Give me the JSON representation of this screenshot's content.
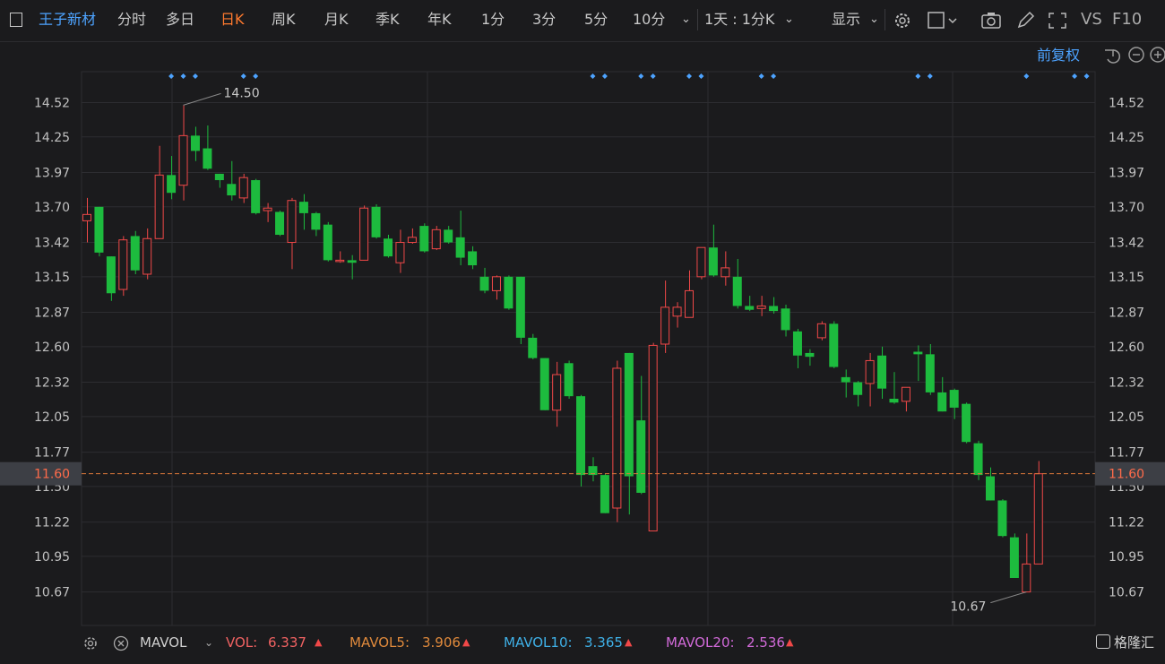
{
  "toolbar": {
    "stock_name": "王子新材",
    "periods": [
      "分时",
      "多日",
      "日K",
      "周K",
      "月K",
      "季K",
      "年K",
      "1分",
      "3分",
      "5分",
      "10分"
    ],
    "active_period": "日K",
    "range_label": "1天 : 1分K",
    "display_label": "显示",
    "vs_label": "VS",
    "f10_label": "F10"
  },
  "chart_controls": {
    "adjust_label": "前复权"
  },
  "colors": {
    "up": "#f04848",
    "down": "#1dbb3e",
    "grid": "#2d2d31",
    "current_line": "#e0793a",
    "axis_text": "#c0c0c0",
    "marker": "#4da3ff"
  },
  "chart_data": {
    "type": "candlestick",
    "y_ticks": [
      "14.52",
      "14.25",
      "13.97",
      "13.70",
      "13.42",
      "13.15",
      "12.87",
      "12.60",
      "12.32",
      "12.05",
      "11.77",
      "11.50",
      "11.22",
      "10.95",
      "10.67"
    ],
    "ylim": [
      10.41,
      14.77
    ],
    "current_price": "11.60",
    "high_annotation": "14.50",
    "low_annotation": "10.67",
    "candles": [
      {
        "o": 13.59,
        "c": 13.64,
        "h": 13.77,
        "l": 13.42
      },
      {
        "o": 13.7,
        "c": 13.34,
        "h": 13.7,
        "l": 13.31
      },
      {
        "o": 13.31,
        "c": 13.02,
        "h": 13.31,
        "l": 12.96
      },
      {
        "o": 13.05,
        "c": 13.44,
        "h": 13.47,
        "l": 13.0
      },
      {
        "o": 13.47,
        "c": 13.2,
        "h": 13.51,
        "l": 13.17
      },
      {
        "o": 13.17,
        "c": 13.45,
        "h": 13.53,
        "l": 13.13
      },
      {
        "o": 13.45,
        "c": 13.95,
        "h": 14.18,
        "l": 13.45
      },
      {
        "o": 13.95,
        "c": 13.81,
        "h": 14.1,
        "l": 13.76
      },
      {
        "o": 13.87,
        "c": 14.26,
        "h": 14.5,
        "l": 13.75
      },
      {
        "o": 14.26,
        "c": 14.14,
        "h": 14.33,
        "l": 14.06
      },
      {
        "o": 14.16,
        "c": 14.0,
        "h": 14.34,
        "l": 13.99
      },
      {
        "o": 13.96,
        "c": 13.91,
        "h": 13.96,
        "l": 13.85
      },
      {
        "o": 13.88,
        "c": 13.79,
        "h": 14.06,
        "l": 13.75
      },
      {
        "o": 13.77,
        "c": 13.93,
        "h": 13.96,
        "l": 13.73
      },
      {
        "o": 13.91,
        "c": 13.65,
        "h": 13.92,
        "l": 13.64
      },
      {
        "o": 13.67,
        "c": 13.69,
        "h": 13.73,
        "l": 13.58
      },
      {
        "o": 13.66,
        "c": 13.48,
        "h": 13.67,
        "l": 13.47
      },
      {
        "o": 13.42,
        "c": 13.75,
        "h": 13.77,
        "l": 13.21
      },
      {
        "o": 13.74,
        "c": 13.65,
        "h": 13.8,
        "l": 13.52
      },
      {
        "o": 13.65,
        "c": 13.52,
        "h": 13.66,
        "l": 13.47
      },
      {
        "o": 13.56,
        "c": 13.28,
        "h": 13.58,
        "l": 13.27
      },
      {
        "o": 13.28,
        "c": 13.28,
        "h": 13.35,
        "l": 13.26
      },
      {
        "o": 13.28,
        "c": 13.26,
        "h": 13.32,
        "l": 13.13
      },
      {
        "o": 13.28,
        "c": 13.69,
        "h": 13.71,
        "l": 13.28
      },
      {
        "o": 13.7,
        "c": 13.46,
        "h": 13.72,
        "l": 13.45
      },
      {
        "o": 13.45,
        "c": 13.31,
        "h": 13.48,
        "l": 13.3
      },
      {
        "o": 13.26,
        "c": 13.42,
        "h": 13.52,
        "l": 13.18
      },
      {
        "o": 13.42,
        "c": 13.46,
        "h": 13.53,
        "l": 13.41
      },
      {
        "o": 13.55,
        "c": 13.35,
        "h": 13.57,
        "l": 13.34
      },
      {
        "o": 13.37,
        "c": 13.52,
        "h": 13.55,
        "l": 13.36
      },
      {
        "o": 13.52,
        "c": 13.42,
        "h": 13.55,
        "l": 13.41
      },
      {
        "o": 13.46,
        "c": 13.3,
        "h": 13.67,
        "l": 13.24
      },
      {
        "o": 13.35,
        "c": 13.24,
        "h": 13.39,
        "l": 13.21
      },
      {
        "o": 13.15,
        "c": 13.04,
        "h": 13.22,
        "l": 13.02
      },
      {
        "o": 13.04,
        "c": 13.15,
        "h": 13.16,
        "l": 12.97
      },
      {
        "o": 13.15,
        "c": 12.9,
        "h": 13.16,
        "l": 12.89
      },
      {
        "o": 13.15,
        "c": 12.67,
        "h": 13.15,
        "l": 12.62
      },
      {
        "o": 12.67,
        "c": 12.51,
        "h": 12.7,
        "l": 12.5
      },
      {
        "o": 12.51,
        "c": 12.1,
        "h": 12.51,
        "l": 12.1
      },
      {
        "o": 12.1,
        "c": 12.38,
        "h": 12.48,
        "l": 11.97
      },
      {
        "o": 12.47,
        "c": 12.21,
        "h": 12.49,
        "l": 12.19
      },
      {
        "o": 12.21,
        "c": 11.59,
        "h": 12.22,
        "l": 11.5
      },
      {
        "o": 11.66,
        "c": 11.59,
        "h": 11.73,
        "l": 11.54
      },
      {
        "o": 11.59,
        "c": 11.29,
        "h": 11.6,
        "l": 11.29
      },
      {
        "o": 11.33,
        "c": 12.43,
        "h": 12.49,
        "l": 11.22
      },
      {
        "o": 12.55,
        "c": 11.58,
        "h": 12.55,
        "l": 11.28
      },
      {
        "o": 12.02,
        "c": 11.45,
        "h": 12.37,
        "l": 11.44
      },
      {
        "o": 11.15,
        "c": 12.61,
        "h": 12.63,
        "l": 11.15
      },
      {
        "o": 12.62,
        "c": 12.91,
        "h": 13.12,
        "l": 12.55
      },
      {
        "o": 12.84,
        "c": 12.91,
        "h": 12.95,
        "l": 12.75
      },
      {
        "o": 12.83,
        "c": 13.04,
        "h": 13.2,
        "l": 12.83
      },
      {
        "o": 13.15,
        "c": 13.38,
        "h": 13.38,
        "l": 13.13
      },
      {
        "o": 13.38,
        "c": 13.16,
        "h": 13.56,
        "l": 13.15
      },
      {
        "o": 13.15,
        "c": 13.22,
        "h": 13.35,
        "l": 13.08
      },
      {
        "o": 13.15,
        "c": 12.92,
        "h": 13.29,
        "l": 12.9
      },
      {
        "o": 12.92,
        "c": 12.89,
        "h": 13.0,
        "l": 12.88
      },
      {
        "o": 12.9,
        "c": 12.92,
        "h": 13.0,
        "l": 12.84
      },
      {
        "o": 12.92,
        "c": 12.88,
        "h": 12.99,
        "l": 12.86
      },
      {
        "o": 12.9,
        "c": 12.73,
        "h": 12.93,
        "l": 12.68
      },
      {
        "o": 12.72,
        "c": 12.53,
        "h": 12.74,
        "l": 12.43
      },
      {
        "o": 12.55,
        "c": 12.52,
        "h": 12.58,
        "l": 12.45
      },
      {
        "o": 12.67,
        "c": 12.78,
        "h": 12.8,
        "l": 12.65
      },
      {
        "o": 12.78,
        "c": 12.44,
        "h": 12.8,
        "l": 12.43
      },
      {
        "o": 12.36,
        "c": 12.32,
        "h": 12.42,
        "l": 12.2
      },
      {
        "o": 12.32,
        "c": 12.22,
        "h": 12.33,
        "l": 12.13
      },
      {
        "o": 12.31,
        "c": 12.49,
        "h": 12.55,
        "l": 12.13
      },
      {
        "o": 12.53,
        "c": 12.27,
        "h": 12.6,
        "l": 12.19
      },
      {
        "o": 12.19,
        "c": 12.16,
        "h": 12.4,
        "l": 12.15
      },
      {
        "o": 12.17,
        "c": 12.28,
        "h": 12.28,
        "l": 12.09
      },
      {
        "o": 12.56,
        "c": 12.54,
        "h": 12.61,
        "l": 12.33
      },
      {
        "o": 12.54,
        "c": 12.24,
        "h": 12.62,
        "l": 12.22
      },
      {
        "o": 12.24,
        "c": 12.09,
        "h": 12.36,
        "l": 12.09
      },
      {
        "o": 12.26,
        "c": 12.12,
        "h": 12.27,
        "l": 12.03
      },
      {
        "o": 12.15,
        "c": 11.85,
        "h": 12.16,
        "l": 11.84
      },
      {
        "o": 11.84,
        "c": 11.59,
        "h": 11.86,
        "l": 11.55
      },
      {
        "o": 11.58,
        "c": 11.39,
        "h": 11.65,
        "l": 11.39
      },
      {
        "o": 11.39,
        "c": 11.11,
        "h": 11.4,
        "l": 11.1
      },
      {
        "o": 11.1,
        "c": 10.78,
        "h": 11.13,
        "l": 10.78
      },
      {
        "o": 10.67,
        "c": 10.89,
        "h": 11.13,
        "l": 10.67
      },
      {
        "o": 10.89,
        "c": 11.6,
        "h": 11.7,
        "l": 10.89
      }
    ],
    "event_markers": [
      7,
      8,
      9,
      13,
      14,
      42,
      43,
      46,
      47,
      50,
      51,
      56,
      57,
      69,
      70,
      78,
      82,
      83
    ]
  },
  "indicator_bar": {
    "name": "MAVOL",
    "vol_label": "VOL:",
    "vol_value": "6.337",
    "ma5_label": "MAVOL5:",
    "ma5_value": "3.906",
    "ma10_label": "MAVOL10:",
    "ma10_value": "3.365",
    "ma20_label": "MAVOL20:",
    "ma20_value": "2.536"
  },
  "brand": {
    "logo_text": "格隆汇"
  }
}
